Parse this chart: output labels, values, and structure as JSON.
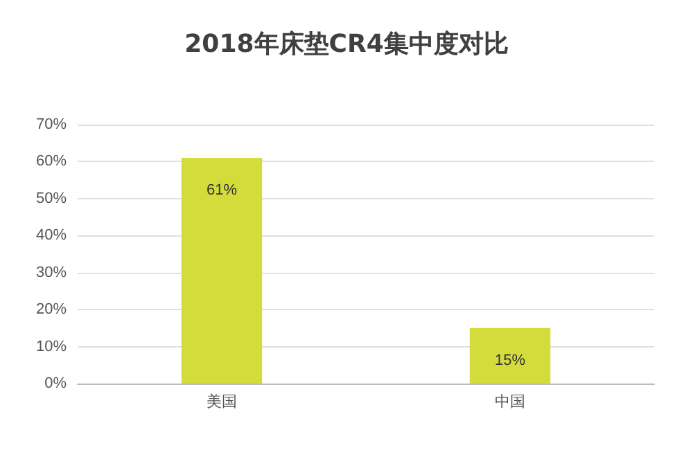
{
  "chart_data": {
    "type": "bar",
    "title": "2018年床垫CR4集中度对比",
    "categories": [
      "美国",
      "中国"
    ],
    "values": [
      61,
      15
    ],
    "value_labels": [
      "61%",
      "15%"
    ],
    "color": "#d4dc3c",
    "ylim": [
      0,
      70
    ],
    "yticks": [
      {
        "value": 0,
        "label": "0%"
      },
      {
        "value": 10,
        "label": "10%"
      },
      {
        "value": 20,
        "label": "20%"
      },
      {
        "value": 30,
        "label": "30%"
      },
      {
        "value": 40,
        "label": "40%"
      },
      {
        "value": 50,
        "label": "50%"
      },
      {
        "value": 60,
        "label": "60%"
      },
      {
        "value": 70,
        "label": "70%"
      }
    ],
    "grid": "y"
  }
}
